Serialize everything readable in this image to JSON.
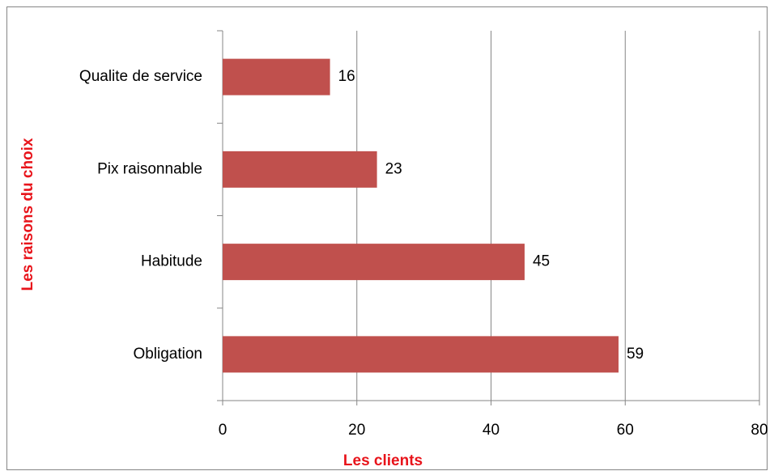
{
  "chart_data": {
    "type": "bar",
    "orientation": "horizontal",
    "categories": [
      "Obligation",
      "Habitude",
      "Pix raisonnable",
      "Qualite de service"
    ],
    "values": [
      59,
      45,
      23,
      16
    ],
    "color": "#c0504d",
    "xlabel": "Les clients",
    "ylabel": "Les  raisons du choix",
    "xlim": [
      0,
      80
    ],
    "xticks": [
      0,
      20,
      40,
      60,
      80
    ],
    "grid": true
  }
}
